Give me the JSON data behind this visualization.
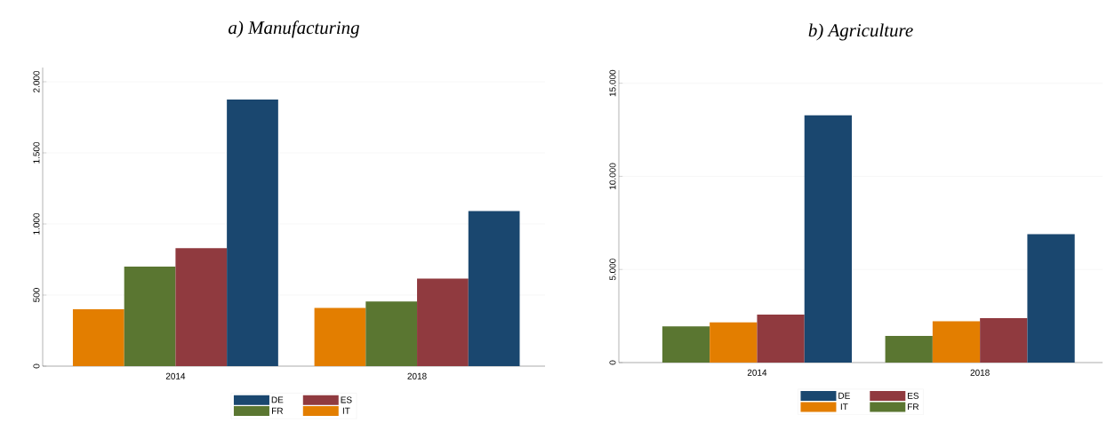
{
  "chart_data": [
    {
      "type": "bar",
      "title": "a)  Manufacturing",
      "categories": [
        "2014",
        "2018"
      ],
      "series": [
        {
          "name": "IT",
          "color": "#e37e00",
          "values": [
            400,
            410
          ]
        },
        {
          "name": "FR",
          "color": "#5a7631",
          "values": [
            700,
            455
          ]
        },
        {
          "name": "ES",
          "color": "#903a3f",
          "values": [
            830,
            615
          ]
        },
        {
          "name": "DE",
          "color": "#1a476f",
          "values": [
            1875,
            1090
          ]
        }
      ],
      "ylim": [
        0,
        2100
      ],
      "yticks": [
        0,
        500,
        {
          "value": 1000,
          "label": "1.000"
        },
        {
          "value": 1500,
          "label": "1.500"
        },
        {
          "value": 2000,
          "label": "2.000"
        }
      ],
      "grid": "y",
      "legend": "bottom"
    },
    {
      "type": "bar",
      "title": "b)  Agriculture",
      "categories": [
        "2014",
        "2018"
      ],
      "series": [
        {
          "name": "FR",
          "color": "#5a7631",
          "values": [
            1950,
            1430
          ]
        },
        {
          "name": "IT",
          "color": "#e37e00",
          "values": [
            2160,
            2220
          ]
        },
        {
          "name": "ES",
          "color": "#903a3f",
          "values": [
            2580,
            2390
          ]
        },
        {
          "name": "DE",
          "color": "#1a476f",
          "values": [
            13280,
            6890
          ]
        }
      ],
      "ylim": [
        0,
        15700
      ],
      "yticks": [
        0,
        {
          "value": 5000,
          "label": "5.000"
        },
        {
          "value": 10000,
          "label": "10.000"
        },
        {
          "value": 15000,
          "label": "15.000"
        }
      ],
      "grid": "y",
      "legend": "bottom"
    }
  ]
}
